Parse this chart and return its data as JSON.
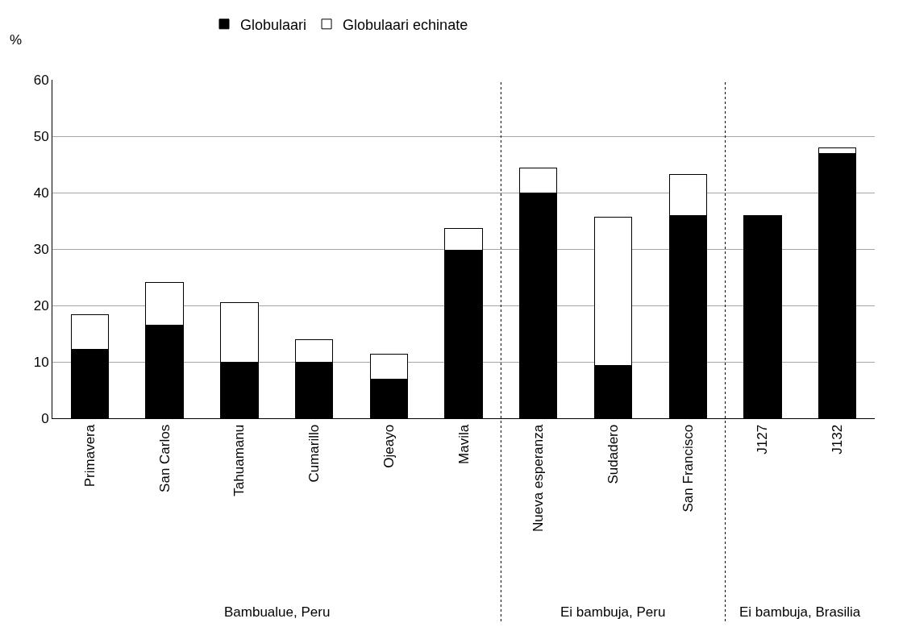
{
  "chart_data": {
    "type": "bar",
    "stacked": true,
    "ylabel": "%",
    "categories": [
      "Primavera",
      "San Carlos",
      "Tahuamanu",
      "Cumarillo",
      "Ojeayo",
      "Mavila",
      "Nueva esperanza",
      "Sudadero",
      "San Francisco",
      "J127",
      "J132"
    ],
    "series": [
      {
        "name": "Globulaari",
        "color": "#000000",
        "values": [
          12.2,
          16.5,
          10,
          10,
          7,
          29.8,
          40,
          9.4,
          35.9,
          36,
          47
        ]
      },
      {
        "name": "Globulaari echinate",
        "color": "#ffffff",
        "values": [
          6.1,
          7.6,
          10.5,
          4,
          4.3,
          3.8,
          4.3,
          26.2,
          7.3,
          null,
          1
        ]
      }
    ],
    "ylim": [
      0,
      60
    ],
    "yticks": [
      0,
      10,
      20,
      30,
      40,
      50,
      60
    ],
    "grid": "y",
    "legend": "top",
    "annotations": [
      "Bambualue, Peru",
      "Ei bambuja, Peru",
      "Ei bambuja, Brasilia"
    ]
  }
}
